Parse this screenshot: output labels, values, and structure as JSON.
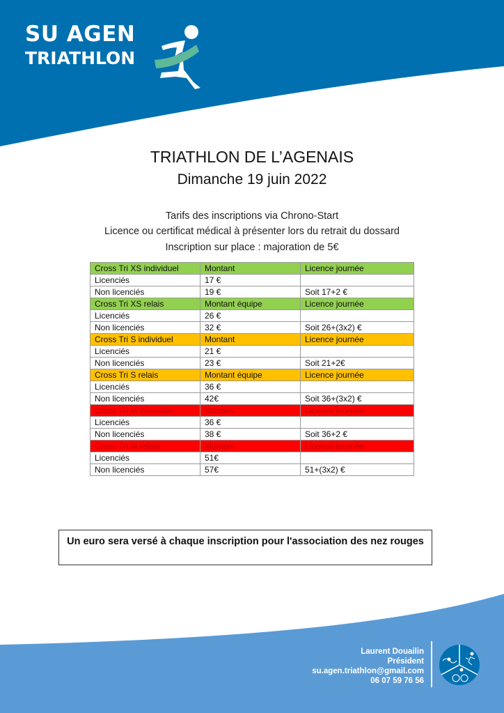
{
  "header": {
    "logo_line1": "SU AGEN",
    "logo_line2": "TRIATHLON",
    "brand_color": "#0070b0",
    "ribbon_color": "#5fb89a"
  },
  "title": "TRIATHLON DE L’AGENAIS",
  "date": "Dimanche 19 juin 2022",
  "info": [
    "Tarifs des inscriptions via Chrono-Start",
    "Licence ou certificat médical à présenter lors du retrait du dossard",
    "Inscription sur place : majoration de 5€"
  ],
  "table": {
    "rows": [
      {
        "type": "green",
        "cells": [
          "Cross Tri XS individuel",
          "Montant",
          "Licence journée"
        ]
      },
      {
        "type": "",
        "cells": [
          "Licenciés",
          "17 €",
          ""
        ]
      },
      {
        "type": "",
        "cells": [
          "Non licenciés",
          "19 €",
          "Soit 17+2 €"
        ]
      },
      {
        "type": "green",
        "cells": [
          "Cross Tri XS relais",
          "Montant équipe",
          "Licence journée"
        ]
      },
      {
        "type": "",
        "cells": [
          "Licenciés",
          "26 €",
          ""
        ]
      },
      {
        "type": "",
        "cells": [
          "Non licenciés",
          "32 €",
          "Soit 26+(3x2) €"
        ]
      },
      {
        "type": "orange",
        "cells": [
          "Cross Tri S individuel",
          "Montant",
          "Licence journée"
        ]
      },
      {
        "type": "",
        "cells": [
          "Licenciés",
          "21 €",
          ""
        ]
      },
      {
        "type": "",
        "cells": [
          "Non licenciés",
          "23 €",
          "Soit 21+2€"
        ]
      },
      {
        "type": "orange",
        "cells": [
          "Cross Tri S relais",
          "Montant équipe",
          "Licence journée"
        ]
      },
      {
        "type": "",
        "cells": [
          "Licenciés",
          "36 €",
          ""
        ]
      },
      {
        "type": "",
        "cells": [
          "Non licenciés",
          "42€",
          "Soit 36+(3x2) €"
        ]
      },
      {
        "type": "red",
        "cells": [
          "Cross Tri M individuel",
          "Montant",
          "Licence journée"
        ]
      },
      {
        "type": "",
        "cells": [
          "Licenciés",
          "36 €",
          ""
        ]
      },
      {
        "type": "",
        "cells": [
          "Non licenciés",
          "38 €",
          "Soit 36+2 €"
        ]
      },
      {
        "type": "red",
        "cells": [
          "Cross Tri M relais",
          "Montant",
          "Licence journée"
        ]
      },
      {
        "type": "",
        "cells": [
          "Licenciés",
          "51€",
          ""
        ]
      },
      {
        "type": "",
        "cells": [
          "Non licenciés",
          "57€",
          "51+(3x2) €"
        ]
      }
    ]
  },
  "note": "Un euro sera versé à chaque inscription pour l'association des nez rouges",
  "footer": {
    "name": "Laurent Douailin",
    "role": "Président",
    "email": "su.agen.triathlon@gmail.com",
    "phone": "06 07 59 76 56",
    "footer_color": "#5b9bd5"
  }
}
